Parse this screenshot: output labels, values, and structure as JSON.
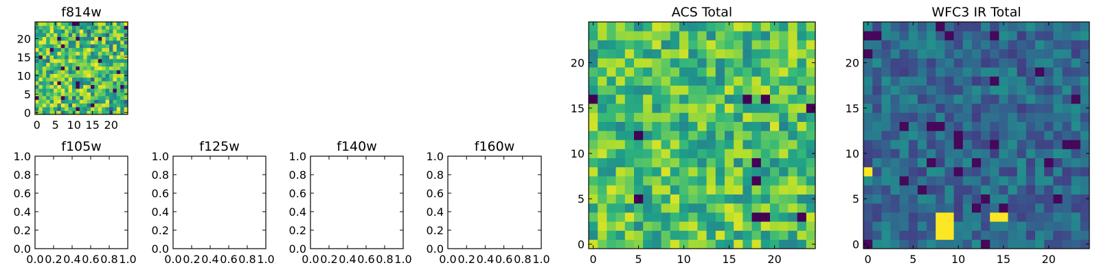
{
  "chart_data": [
    {
      "type": "heatmap",
      "id": "f814w",
      "title": "f814w",
      "xlim": [
        -0.5,
        24.5
      ],
      "ylim": [
        -0.5,
        24.5
      ],
      "xticks": [
        "0",
        "5",
        "10",
        "15",
        "20"
      ],
      "yticks": [
        "0",
        "5",
        "10",
        "15",
        "20"
      ],
      "colormap": "viridis",
      "colorscale": "speckled, mostly green-yellow",
      "grid": false
    },
    {
      "type": "heatmap",
      "id": "f105w",
      "title": "f105w",
      "xlim": [
        0,
        1
      ],
      "ylim": [
        0,
        1
      ],
      "xticks": [
        "0.0",
        "0.2",
        "0.4",
        "0.6",
        "0.8",
        "1.0"
      ],
      "yticks": [
        "0.0",
        "0.2",
        "0.4",
        "0.6",
        "0.8",
        "1.0"
      ],
      "empty": true,
      "grid": false
    },
    {
      "type": "heatmap",
      "id": "f125w",
      "title": "f125w",
      "xlim": [
        0,
        1
      ],
      "ylim": [
        0,
        1
      ],
      "xticks": [
        "0.0",
        "0.2",
        "0.4",
        "0.6",
        "0.8",
        "1.0"
      ],
      "yticks": [
        "0.0",
        "0.2",
        "0.4",
        "0.6",
        "0.8",
        "1.0"
      ],
      "empty": true,
      "grid": false
    },
    {
      "type": "heatmap",
      "id": "f140w",
      "title": "f140w",
      "xlim": [
        0,
        1
      ],
      "ylim": [
        0,
        1
      ],
      "xticks": [
        "0.0",
        "0.2",
        "0.4",
        "0.6",
        "0.8",
        "1.0"
      ],
      "yticks": [
        "0.0",
        "0.2",
        "0.4",
        "0.6",
        "0.8",
        "1.0"
      ],
      "empty": true,
      "grid": false
    },
    {
      "type": "heatmap",
      "id": "f160w",
      "title": "f160w",
      "xlim": [
        0,
        1
      ],
      "ylim": [
        0,
        1
      ],
      "xticks": [
        "0.0",
        "0.2",
        "0.4",
        "0.6",
        "0.8",
        "1.0"
      ],
      "yticks": [
        "0.0",
        "0.2",
        "0.4",
        "0.6",
        "0.8",
        "1.0"
      ],
      "empty": true,
      "grid": false
    },
    {
      "type": "heatmap",
      "id": "acs_total",
      "title": "ACS Total",
      "xlim": [
        -0.5,
        24.5
      ],
      "ylim": [
        -0.5,
        24.5
      ],
      "xticks": [
        "0",
        "5",
        "10",
        "15",
        "20"
      ],
      "yticks": [
        "0",
        "5",
        "10",
        "15",
        "20"
      ],
      "colormap": "viridis",
      "colorscale": "mostly green to yellow with scattered dark pixels",
      "dark_pixels": [
        [
          0,
          16
        ],
        [
          17,
          16
        ],
        [
          19,
          16
        ],
        [
          24,
          15
        ],
        [
          5,
          12
        ],
        [
          5,
          5
        ],
        [
          18,
          9
        ],
        [
          18,
          7
        ],
        [
          18,
          3
        ],
        [
          19,
          3
        ],
        [
          23,
          3
        ]
      ],
      "grid": false
    },
    {
      "type": "heatmap",
      "id": "wfc3_ir_total",
      "title": "WFC3 IR Total",
      "xlim": [
        -0.5,
        24.5
      ],
      "ylim": [
        -0.5,
        24.5
      ],
      "xticks": [
        "0",
        "5",
        "10",
        "15",
        "20"
      ],
      "yticks": [
        "0",
        "5",
        "10",
        "15",
        "20"
      ],
      "colormap": "viridis",
      "colorscale": "mostly teal-blue with a few bright yellow pixels",
      "bright_pixels": [
        [
          0,
          8
        ],
        [
          8,
          3
        ],
        [
          8,
          2
        ],
        [
          8,
          1
        ],
        [
          9,
          3
        ],
        [
          9,
          2
        ],
        [
          9,
          1
        ],
        [
          14,
          3
        ],
        [
          15,
          3
        ]
      ],
      "grid": false
    }
  ]
}
